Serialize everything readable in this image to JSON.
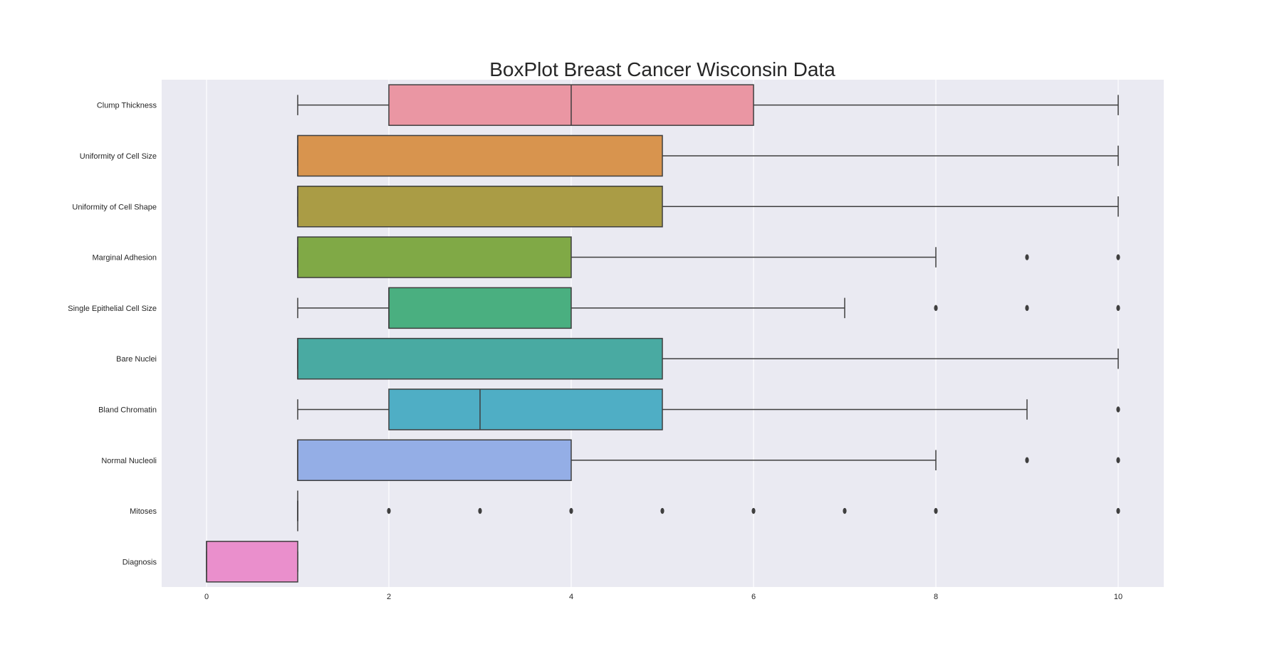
{
  "chart_data": {
    "type": "boxplot",
    "orientation": "horizontal",
    "title": "BoxPlot Breast Cancer Wisconsin Data",
    "xlabel": "",
    "ylabel": "",
    "xlim": [
      -0.5,
      10.5
    ],
    "x_ticks": [
      0,
      2,
      4,
      6,
      8,
      10
    ],
    "grid": true,
    "background": "#eaeaf2",
    "categories": [
      "Clump Thickness",
      "Uniformity of Cell Size",
      "Uniformity of Cell Shape",
      "Marginal Adhesion",
      "Single Epithelial Cell Size",
      "Bare Nuclei",
      "Bland Chromatin",
      "Normal Nucleoli",
      "Mitoses",
      "Diagnosis"
    ],
    "boxes": [
      {
        "category": "Clump Thickness",
        "whisker_low": 1,
        "q1": 2,
        "median": 4,
        "q3": 6,
        "whisker_high": 10,
        "outliers": [],
        "color": "#ea96a3"
      },
      {
        "category": "Uniformity of Cell Size",
        "whisker_low": 1,
        "q1": 1,
        "median": 1,
        "q3": 5,
        "whisker_high": 10,
        "outliers": [],
        "color": "#d8944e"
      },
      {
        "category": "Uniformity of Cell Shape",
        "whisker_low": 1,
        "q1": 1,
        "median": 1,
        "q3": 5,
        "whisker_high": 10,
        "outliers": [],
        "color": "#aa9c45"
      },
      {
        "category": "Marginal Adhesion",
        "whisker_low": 1,
        "q1": 1,
        "median": 1,
        "q3": 4,
        "whisker_high": 8,
        "outliers": [
          9,
          10
        ],
        "color": "#80a946"
      },
      {
        "category": "Single Epithelial Cell Size",
        "whisker_low": 1,
        "q1": 2,
        "median": 2,
        "q3": 4,
        "whisker_high": 7,
        "outliers": [
          8,
          9,
          10
        ],
        "color": "#4aaf80"
      },
      {
        "category": "Bare Nuclei",
        "whisker_low": 1,
        "q1": 1,
        "median": 1,
        "q3": 5,
        "whisker_high": 10,
        "outliers": [],
        "color": "#49aaa2"
      },
      {
        "category": "Bland Chromatin",
        "whisker_low": 1,
        "q1": 2,
        "median": 3,
        "q3": 5,
        "whisker_high": 9,
        "outliers": [
          10
        ],
        "color": "#4faec5"
      },
      {
        "category": "Normal Nucleoli",
        "whisker_low": 1,
        "q1": 1,
        "median": 1,
        "q3": 4,
        "whisker_high": 8,
        "outliers": [
          9,
          10
        ],
        "color": "#94aee6"
      },
      {
        "category": "Mitoses",
        "whisker_low": 1,
        "q1": 1,
        "median": 1,
        "q3": 1,
        "whisker_high": 1,
        "outliers": [
          2,
          3,
          4,
          5,
          6,
          7,
          8,
          10
        ],
        "color": "#b9a0e6"
      },
      {
        "category": "Diagnosis",
        "whisker_low": 0,
        "q1": 0,
        "median": 0,
        "q3": 1,
        "whisker_high": 1,
        "outliers": [],
        "color": "#ea8fcc"
      }
    ]
  }
}
